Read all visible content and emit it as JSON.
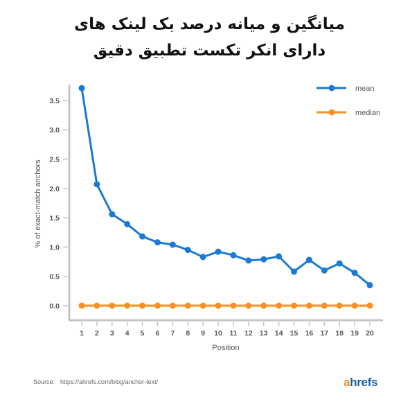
{
  "header": {
    "title_line1": "میانگین و میانه درصد بک لینک های",
    "title_line2": "دارای انکر تکست تطبیق دقیق"
  },
  "footer": {
    "source_label": "Source:",
    "source_url": "https://ahrefs.com/blog/anchor-text/",
    "logo_a": "a",
    "logo_rest": "hrefs"
  },
  "colors": {
    "mean": "#1a7ad4",
    "median": "#f7901e",
    "axis": "#c4c4c4"
  },
  "chart_data": {
    "type": "line",
    "title": "میانگین و میانه درصد بک لینک های دارای انکر تکست تطبیق دقیق",
    "xlabel": "Position",
    "ylabel": "% of exact-match anchors",
    "x": [
      1,
      2,
      3,
      4,
      5,
      6,
      7,
      8,
      9,
      10,
      11,
      12,
      13,
      14,
      15,
      16,
      17,
      18,
      19,
      20
    ],
    "yticks": [
      "0.0",
      "0.5",
      "1.0",
      "1.5",
      "2.0",
      "2.5",
      "3.0",
      "3.5"
    ],
    "ylim": [
      -0.25,
      3.75
    ],
    "grid": false,
    "legend_position": "top-right",
    "series": [
      {
        "name": "mean",
        "color": "#1a7ad4",
        "values": [
          3.71,
          2.07,
          1.56,
          1.39,
          1.18,
          1.08,
          1.04,
          0.95,
          0.83,
          0.92,
          0.86,
          0.77,
          0.79,
          0.84,
          0.58,
          0.78,
          0.6,
          0.72,
          0.56,
          0.35
        ]
      },
      {
        "name": "median",
        "color": "#f7901e",
        "values": [
          0,
          0,
          0,
          0,
          0,
          0,
          0,
          0,
          0,
          0,
          0,
          0,
          0,
          0,
          0,
          0,
          0,
          0,
          0,
          0
        ]
      }
    ]
  }
}
